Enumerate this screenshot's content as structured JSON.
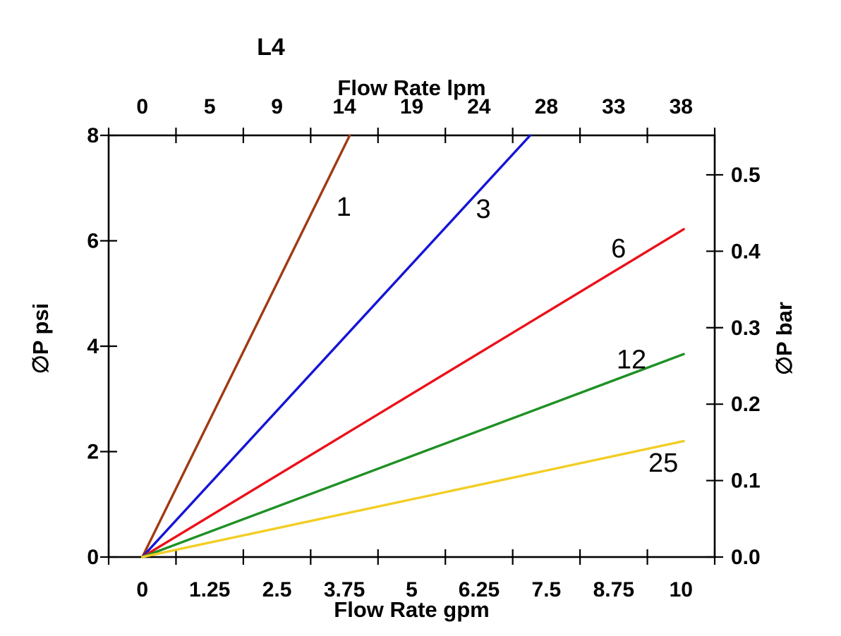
{
  "page": {
    "background": "#ffffff",
    "axis_color": "#000000",
    "text_color": "#000000"
  },
  "chart_data": {
    "type": "line",
    "title": "L4",
    "top_axis": {
      "label": "Flow Rate lpm",
      "tick_labels": [
        "0",
        "5",
        "9",
        "14",
        "19",
        "24",
        "28",
        "33",
        "38"
      ]
    },
    "bottom_axis": {
      "label": "Flow Rate gpm",
      "tick_labels": [
        "0",
        "1.25",
        "2.5",
        "3.75",
        "5",
        "6.25",
        "7.5",
        "8.75",
        "10"
      ]
    },
    "left_axis": {
      "label": "∅P psi",
      "tick_labels": [
        "0",
        "2",
        "4",
        "6",
        "8"
      ],
      "tick_values": [
        0,
        2,
        4,
        6,
        8
      ],
      "range": [
        0,
        8
      ]
    },
    "right_axis": {
      "label": "∅P bar",
      "tick_labels": [
        "0.0",
        "0.1",
        "0.2",
        "0.3",
        "0.4",
        "0.5"
      ],
      "tick_values": [
        0,
        0.1,
        0.2,
        0.3,
        0.4,
        0.5
      ],
      "psi_per_bar": 14.5038,
      "range": [
        0,
        0.55
      ]
    },
    "x_range_gpm": [
      0,
      10
    ],
    "grid": false,
    "legend": "inline-labels",
    "series": [
      {
        "name": "1",
        "color": "#A03A12",
        "points": [
          [
            0,
            0
          ],
          [
            3.85,
            8
          ]
        ],
        "label_at": [
          3.74,
          6.65
        ]
      },
      {
        "name": "3",
        "color": "#1414D6",
        "points": [
          [
            0,
            0
          ],
          [
            7.2,
            8
          ]
        ],
        "label_at": [
          6.33,
          6.61
        ]
      },
      {
        "name": "6",
        "color": "#EC1019",
        "points": [
          [
            0,
            0
          ],
          [
            10.05,
            6.22
          ]
        ],
        "label_at": [
          8.84,
          5.86
        ]
      },
      {
        "name": "12",
        "color": "#1E9023",
        "points": [
          [
            0,
            0
          ],
          [
            10.05,
            3.85
          ]
        ],
        "label_at": [
          9.08,
          3.75
        ]
      },
      {
        "name": "25",
        "color": "#F2CE24",
        "points": [
          [
            0,
            0
          ],
          [
            10.05,
            2.2
          ]
        ],
        "label_at": [
          9.67,
          1.79
        ]
      }
    ]
  }
}
